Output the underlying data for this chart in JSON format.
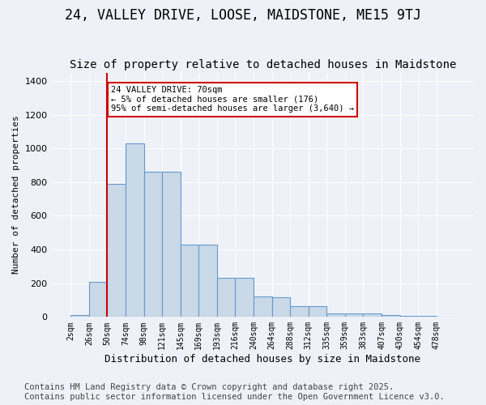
{
  "title": "24, VALLEY DRIVE, LOOSE, MAIDSTONE, ME15 9TJ",
  "subtitle": "Size of property relative to detached houses in Maidstone",
  "xlabel": "Distribution of detached houses by size in Maidstone",
  "ylabel": "Number of detached properties",
  "bar_values": [
    10,
    210,
    790,
    1030,
    860,
    860,
    430,
    430,
    230,
    230,
    120,
    115,
    65,
    65,
    20,
    20,
    20,
    10,
    5,
    5,
    0
  ],
  "bin_labels": [
    "2sqm",
    "26sqm",
    "50sqm",
    "74sqm",
    "98sqm",
    "121sqm",
    "145sqm",
    "169sqm",
    "193sqm",
    "216sqm",
    "240sqm",
    "264sqm",
    "288sqm",
    "312sqm",
    "335sqm",
    "359sqm",
    "383sqm",
    "407sqm",
    "430sqm",
    "454sqm",
    "478sqm"
  ],
  "bar_color": "#c9d9e8",
  "bar_edge_color": "#6699cc",
  "property_size": 70,
  "vline_x_index": 2.0,
  "annotation_text": "24 VALLEY DRIVE: 70sqm\n← 5% of detached houses are smaller (176)\n95% of semi-detached houses are larger (3,640) →",
  "annotation_box_color": "#ffffff",
  "annotation_box_edge_color": "#cc0000",
  "vline_color": "#cc0000",
  "ylim": [
    0,
    1450
  ],
  "background_color": "#eef2f8",
  "plot_bg_color": "#eef2f8",
  "footer_text": "Contains HM Land Registry data © Crown copyright and database right 2025.\nContains public sector information licensed under the Open Government Licence v3.0.",
  "title_fontsize": 12,
  "subtitle_fontsize": 10,
  "footer_fontsize": 7.5
}
